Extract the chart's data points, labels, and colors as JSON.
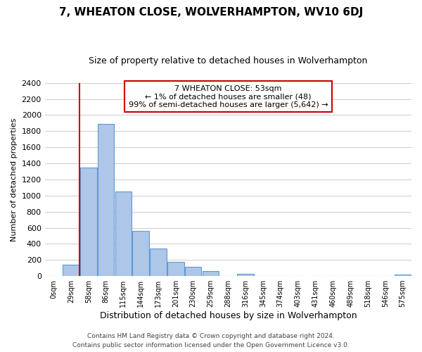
{
  "title": "7, WHEATON CLOSE, WOLVERHAMPTON, WV10 6DJ",
  "subtitle": "Size of property relative to detached houses in Wolverhampton",
  "xlabel": "Distribution of detached houses by size in Wolverhampton",
  "ylabel": "Number of detached properties",
  "bar_labels": [
    "0sqm",
    "29sqm",
    "58sqm",
    "86sqm",
    "115sqm",
    "144sqm",
    "173sqm",
    "201sqm",
    "230sqm",
    "259sqm",
    "288sqm",
    "316sqm",
    "345sqm",
    "374sqm",
    "403sqm",
    "431sqm",
    "460sqm",
    "489sqm",
    "518sqm",
    "546sqm",
    "575sqm"
  ],
  "bar_heights": [
    0,
    140,
    1350,
    1890,
    1050,
    560,
    340,
    175,
    115,
    60,
    0,
    30,
    0,
    0,
    0,
    0,
    0,
    0,
    0,
    0,
    20
  ],
  "bar_color": "#aec6e8",
  "bar_edge_color": "#5b9bd5",
  "vline_color": "#cc0000",
  "vline_x": 1.5,
  "annotation_title": "7 WHEATON CLOSE: 53sqm",
  "annotation_line1": "← 1% of detached houses are smaller (48)",
  "annotation_line2": "99% of semi-detached houses are larger (5,642) →",
  "annotation_box_color": "#ffffff",
  "annotation_box_edge": "#cc0000",
  "ylim": [
    0,
    2400
  ],
  "yticks": [
    0,
    200,
    400,
    600,
    800,
    1000,
    1200,
    1400,
    1600,
    1800,
    2000,
    2200,
    2400
  ],
  "footer1": "Contains HM Land Registry data © Crown copyright and database right 2024.",
  "footer2": "Contains public sector information licensed under the Open Government Licence v3.0.",
  "bg_color": "#ffffff",
  "grid_color": "#cccccc",
  "title_fontsize": 11,
  "subtitle_fontsize": 9,
  "ylabel_fontsize": 8,
  "xlabel_fontsize": 9,
  "tick_fontsize": 8,
  "bar_tick_fontsize": 7,
  "footer_fontsize": 6.5
}
